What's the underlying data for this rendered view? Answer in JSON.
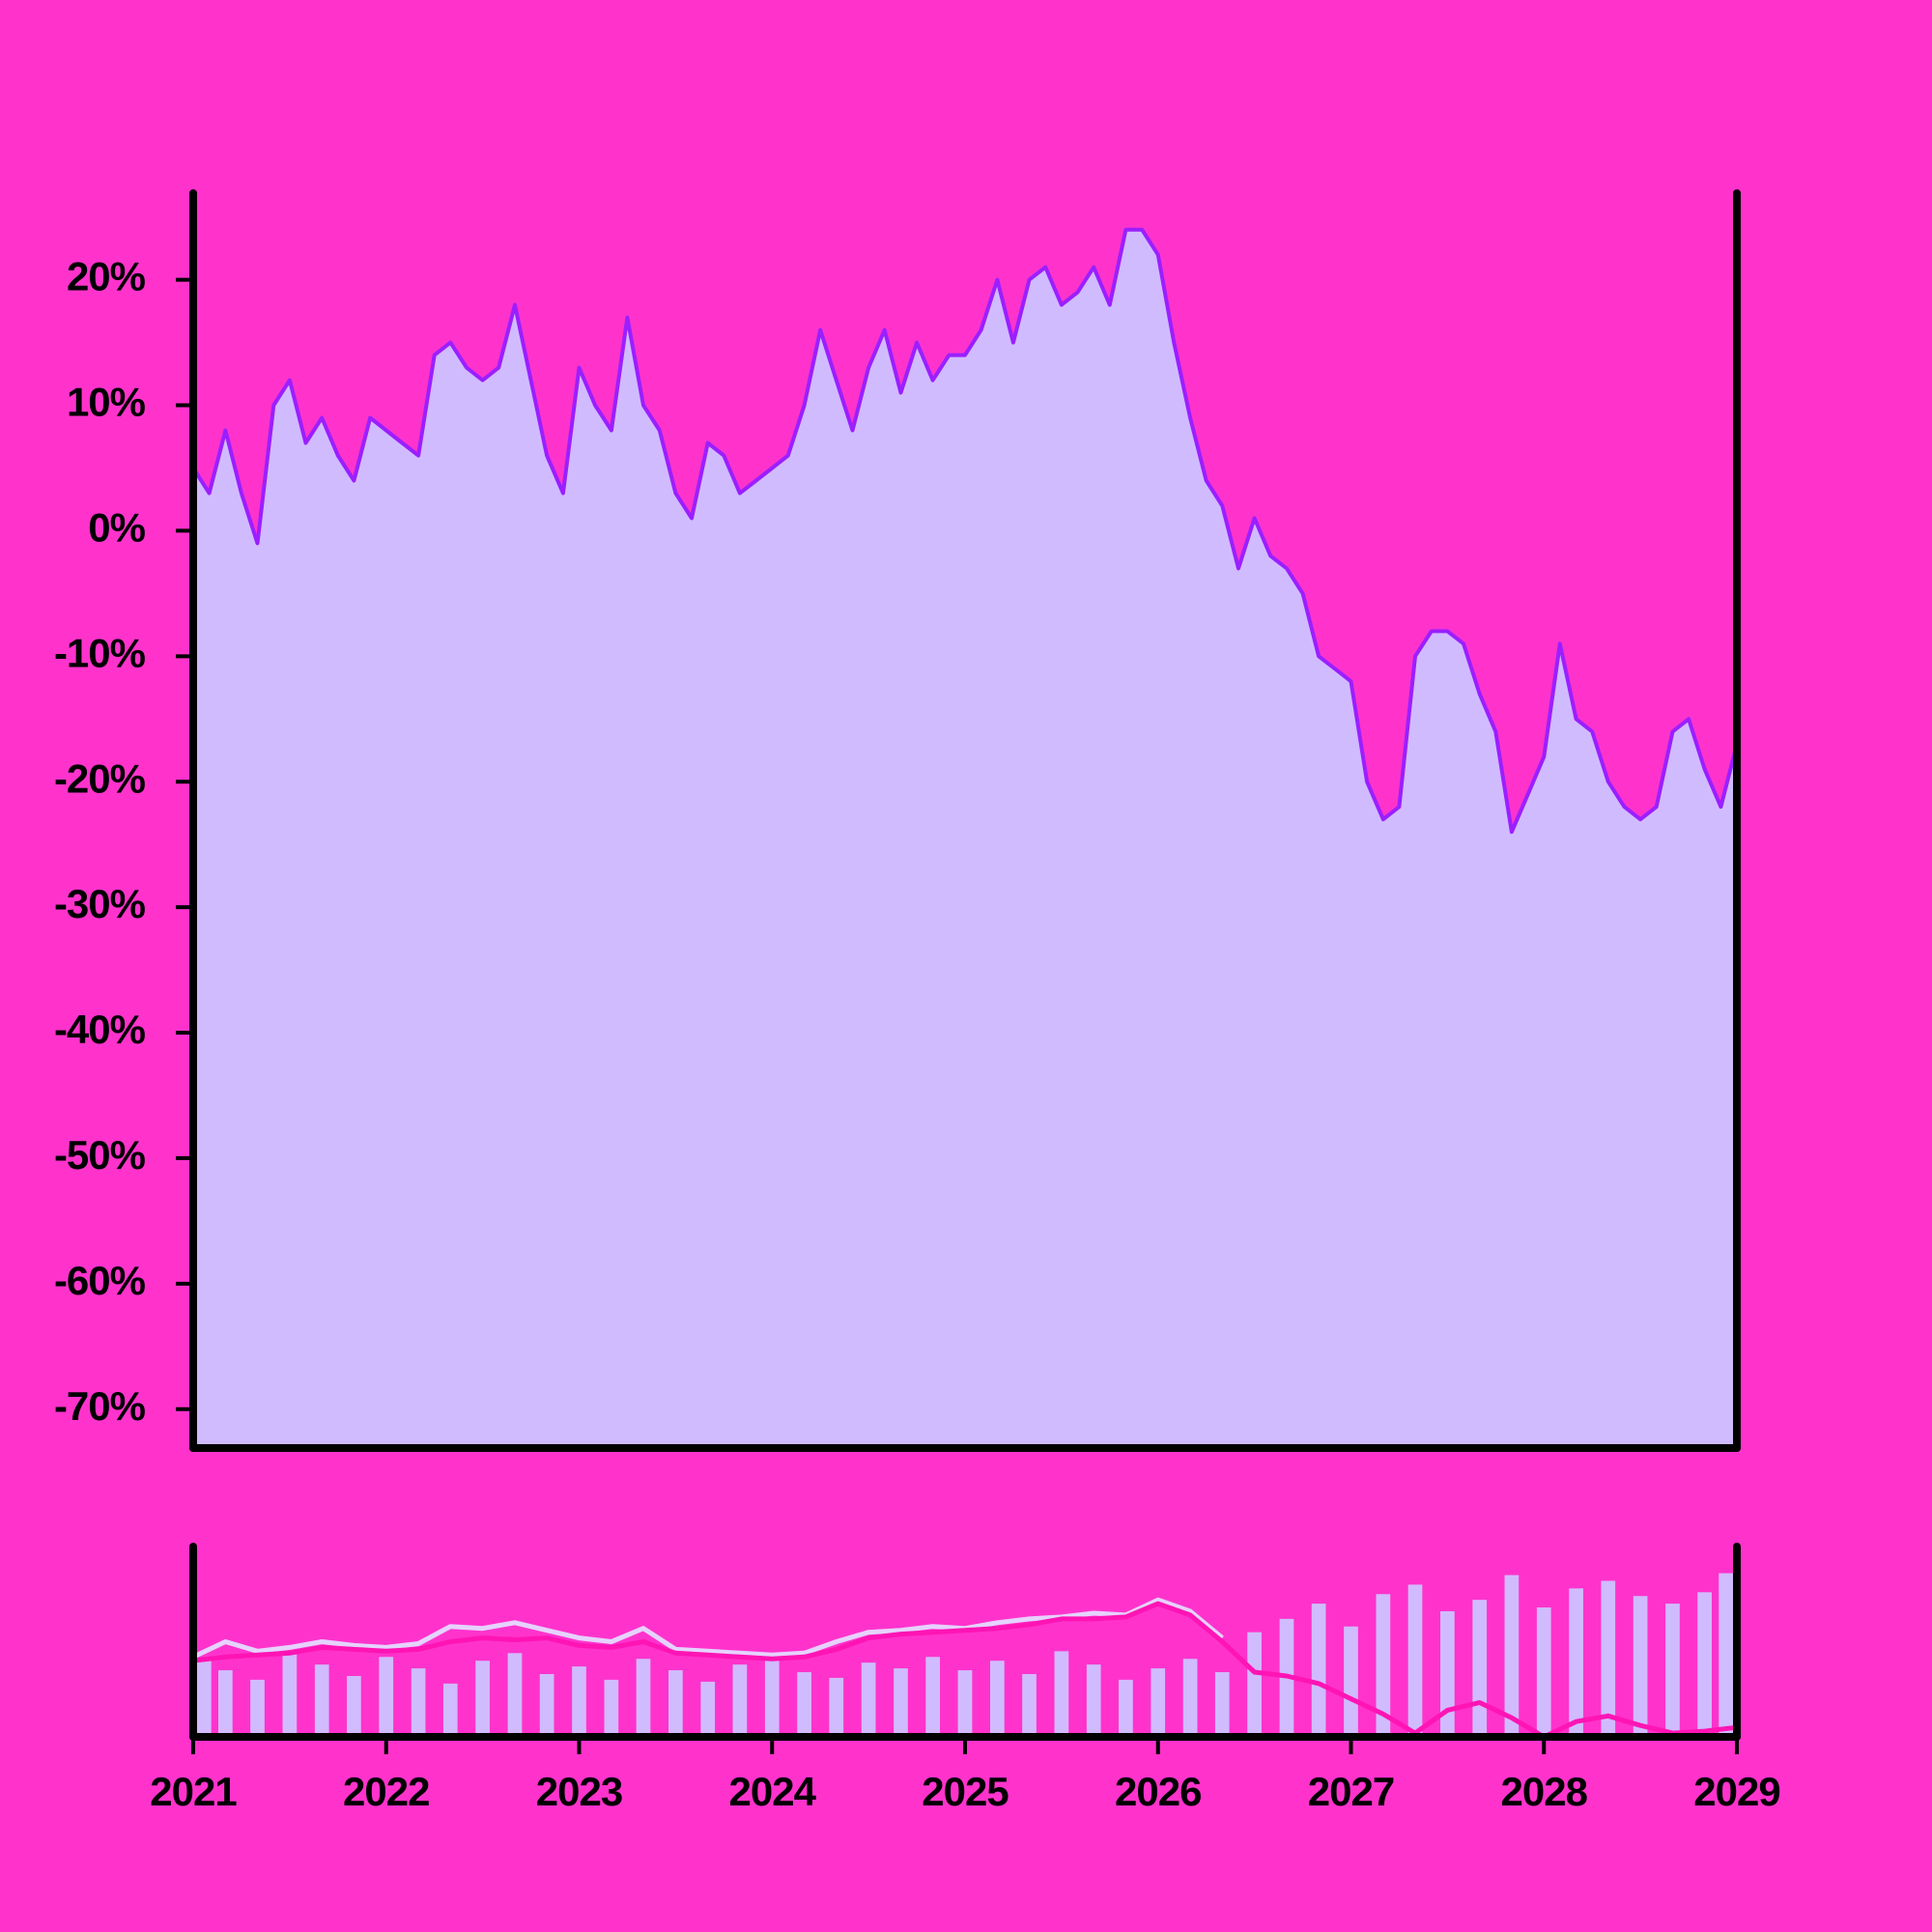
{
  "chart_data": [
    {
      "type": "area",
      "color": "#9b1fff",
      "fill": "#d1bbff",
      "xlim": [
        2021,
        2029
      ],
      "ylim": [
        -73.1,
        26.9
      ],
      "yticks": [
        {
          "value": 20,
          "label": "20%"
        },
        {
          "value": 10,
          "label": "10%"
        },
        {
          "value": 0,
          "label": "0%"
        },
        {
          "value": -10,
          "label": "-10%"
        },
        {
          "value": -20,
          "label": "-20%"
        },
        {
          "value": -30,
          "label": "-30%"
        },
        {
          "value": -40,
          "label": "-40%"
        },
        {
          "value": -50,
          "label": "-50%"
        },
        {
          "value": -60,
          "label": "-60%"
        },
        {
          "value": -70,
          "label": "-70%"
        }
      ],
      "x": [
        2021,
        2021.083,
        2021.167,
        2021.25,
        2021.333,
        2021.417,
        2021.5,
        2021.583,
        2021.667,
        2021.75,
        2021.833,
        2021.917,
        2022,
        2022.083,
        2022.167,
        2022.25,
        2022.333,
        2022.417,
        2022.5,
        2022.583,
        2022.667,
        2022.75,
        2022.833,
        2022.917,
        2023,
        2023.083,
        2023.167,
        2023.25,
        2023.333,
        2023.417,
        2023.5,
        2023.583,
        2023.667,
        2023.75,
        2023.833,
        2023.917,
        2024,
        2024.083,
        2024.167,
        2024.25,
        2024.333,
        2024.417,
        2024.5,
        2024.583,
        2024.667,
        2024.75,
        2024.833,
        2024.917,
        2025,
        2025.083,
        2025.167,
        2025.25,
        2025.333,
        2025.417,
        2025.5,
        2025.583,
        2025.667,
        2025.75,
        2025.833,
        2025.917,
        2026,
        2026.083,
        2026.167,
        2026.25,
        2026.333,
        2026.417,
        2026.5,
        2026.583,
        2026.667,
        2026.75,
        2026.833,
        2026.917,
        2027,
        2027.083,
        2027.167,
        2027.25,
        2027.333,
        2027.417,
        2027.5,
        2027.583,
        2027.667,
        2027.75,
        2027.833,
        2027.917,
        2028,
        2028.083,
        2028.167,
        2028.25,
        2028.333,
        2028.417,
        2028.5,
        2028.583,
        2028.667,
        2028.75,
        2028.833,
        2028.917,
        2029
      ],
      "values": [
        5,
        3,
        8,
        3,
        -1,
        10,
        12,
        7,
        9,
        6,
        4,
        9,
        8,
        7,
        6,
        14,
        15,
        13,
        12,
        13,
        18,
        12,
        6,
        3,
        13,
        10,
        8,
        17,
        10,
        8,
        3,
        1,
        7,
        6,
        3,
        4,
        5,
        6,
        10,
        16,
        12,
        8,
        13,
        16,
        11,
        15,
        12,
        14,
        14,
        16,
        20,
        15,
        20,
        21,
        18,
        19,
        21,
        18,
        24,
        24,
        22,
        15,
        9,
        4,
        2,
        -3,
        1,
        -2,
        -3,
        -5,
        -10,
        -11,
        -12,
        -20,
        -23,
        -22,
        -10,
        -8,
        -8,
        -9,
        -13,
        -16,
        -24,
        -21,
        -18,
        -9,
        -15,
        -16,
        -20,
        -22,
        -23,
        -22,
        -16,
        -15,
        -19,
        -22,
        -17
      ]
    },
    {
      "type": "bar",
      "xlim": [
        2021,
        2029
      ],
      "ylim": [
        0,
        100
      ],
      "xticks": [
        2021,
        2022,
        2023,
        2024,
        2025,
        2026,
        2027,
        2028,
        2029
      ],
      "x": [
        2021,
        2021.167,
        2021.333,
        2021.5,
        2021.667,
        2021.833,
        2022,
        2022.167,
        2022.333,
        2022.5,
        2022.667,
        2022.833,
        2023,
        2023.167,
        2023.333,
        2023.5,
        2023.667,
        2023.833,
        2024,
        2024.167,
        2024.333,
        2024.5,
        2024.667,
        2024.833,
        2025,
        2025.167,
        2025.333,
        2025.5,
        2025.667,
        2025.833,
        2026,
        2026.167,
        2026.333,
        2026.5,
        2026.667,
        2026.833,
        2027,
        2027.167,
        2027.333,
        2027.5,
        2027.667,
        2027.833,
        2028,
        2028.167,
        2028.333,
        2028.5,
        2028.667,
        2028.833,
        2029
      ],
      "series": [
        {
          "type": "bar",
          "color": "#d1bbff",
          "values": [
            40,
            35,
            30,
            45,
            38,
            32,
            42,
            36,
            28,
            40,
            44,
            33,
            37,
            30,
            41,
            35,
            29,
            38,
            43,
            34,
            31,
            39,
            36,
            42,
            35,
            40,
            33,
            45,
            38,
            30,
            36,
            41,
            34,
            55,
            62,
            70,
            58,
            75,
            80,
            66,
            72,
            85,
            68,
            78,
            82,
            74,
            70,
            76,
            86
          ]
        },
        {
          "type": "line",
          "color": "#e6d2ff",
          "values": [
            42,
            50,
            45,
            47,
            50,
            48,
            47,
            49,
            58,
            57,
            60,
            56,
            52,
            50,
            57,
            46,
            45,
            44,
            43,
            44,
            50,
            55,
            56,
            58,
            57,
            60,
            62,
            63,
            65,
            64,
            72,
            66,
            52,
            null,
            null,
            null,
            null,
            null,
            null,
            null,
            null,
            null,
            null,
            null,
            null,
            null,
            null,
            null,
            null
          ]
        },
        {
          "type": "line",
          "color": "#ff14b4",
          "values": [
            40,
            42,
            43,
            44,
            47,
            46,
            45,
            46,
            50,
            52,
            51,
            52,
            48,
            47,
            50,
            44,
            43,
            42,
            41,
            42,
            46,
            52,
            54,
            55,
            56,
            57,
            59,
            62,
            62,
            63,
            70,
            64,
            50,
            34,
            32,
            28,
            20,
            12,
            2,
            14,
            18,
            10,
            0,
            8,
            11,
            6,
            2,
            3,
            5
          ]
        }
      ]
    }
  ]
}
